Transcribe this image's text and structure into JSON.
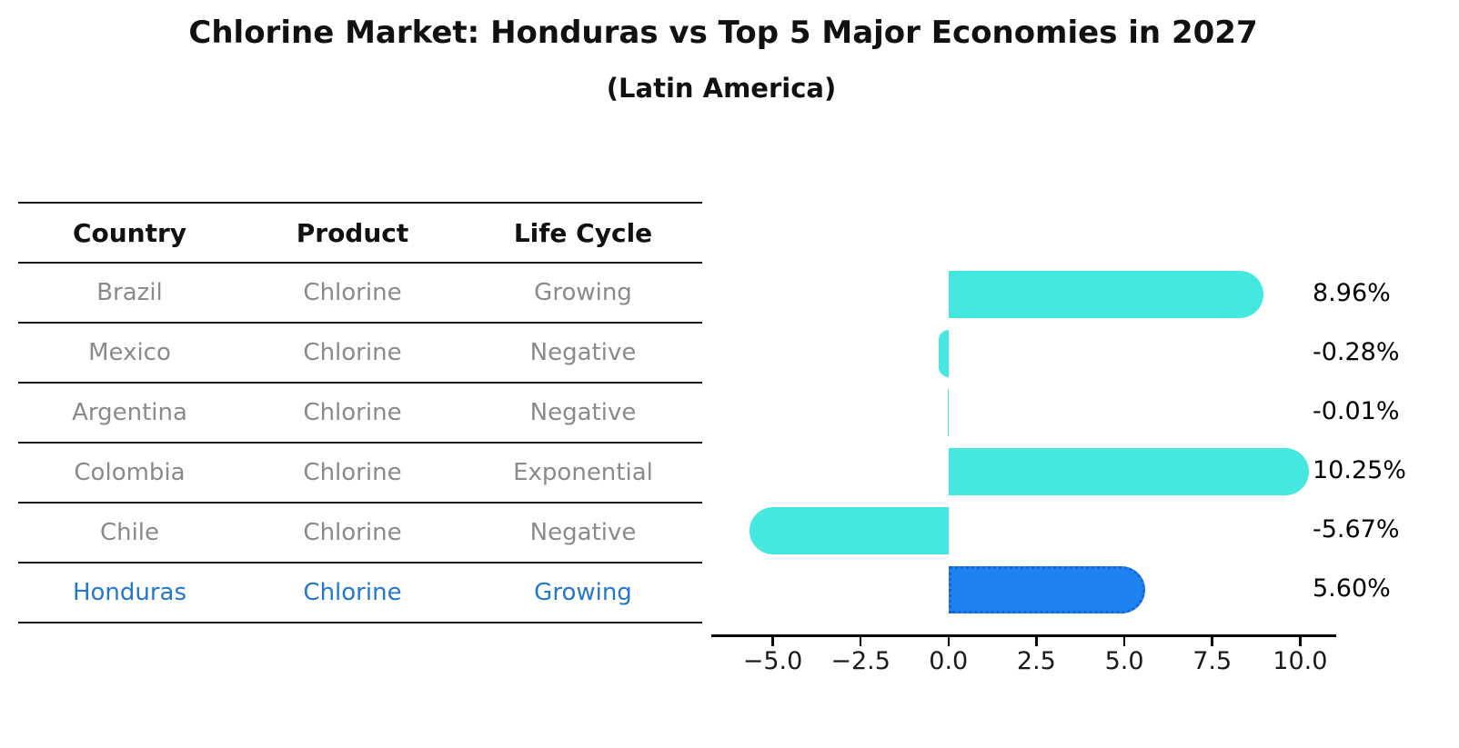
{
  "title": "Chlorine Market: Honduras vs Top 5 Major Economies in 2027",
  "subtitle": "(Latin America)",
  "table": {
    "headers": [
      "Country",
      "Product",
      "Life Cycle"
    ],
    "rows": [
      {
        "country": "Brazil",
        "product": "Chlorine",
        "life_cycle": "Growing",
        "highlight": false
      },
      {
        "country": "Mexico",
        "product": "Chlorine",
        "life_cycle": "Negative",
        "highlight": false
      },
      {
        "country": "Argentina",
        "product": "Chlorine",
        "life_cycle": "Negative",
        "highlight": false
      },
      {
        "country": "Colombia",
        "product": "Chlorine",
        "life_cycle": "Exponential",
        "highlight": false
      },
      {
        "country": "Chile",
        "product": "Chlorine",
        "life_cycle": "Negative",
        "highlight": false
      },
      {
        "country": "Honduras",
        "product": "Chlorine",
        "life_cycle": "Growing",
        "highlight": true
      }
    ]
  },
  "chart_data": {
    "type": "bar",
    "orientation": "horizontal",
    "title": "Chlorine Market: Honduras vs Top 5 Major Economies in 2027",
    "subtitle": "(Latin America)",
    "categories": [
      "Brazil",
      "Mexico",
      "Argentina",
      "Colombia",
      "Chile",
      "Honduras"
    ],
    "values": [
      8.96,
      -0.28,
      -0.01,
      10.25,
      -5.67,
      5.6
    ],
    "value_labels": [
      "8.96%",
      "-0.28%",
      "-0.01%",
      "10.25%",
      "-5.67%",
      "5.60%"
    ],
    "unit": "percent",
    "xlim": [
      -6.72,
      11.0
    ],
    "x_tick_values": [
      -5.0,
      -2.5,
      0.0,
      2.5,
      5.0,
      7.5,
      10.0
    ],
    "x_tick_labels": [
      "−5.0",
      "−2.5",
      "0.0",
      "2.5",
      "5.0",
      "7.5",
      "10.0"
    ],
    "grid": false,
    "legend": false,
    "bar_color": "#45e8de",
    "highlight_bar_color": "#1e82f0",
    "highlight_edge_color": "#1266d8",
    "highlight_edge_style": "dotted",
    "highlight_index": 5
  },
  "colors": {
    "table_line": "#1a1a1a",
    "table_text": "#8a8a8a",
    "highlight_text": "#2478cb",
    "axis": "#000000"
  }
}
